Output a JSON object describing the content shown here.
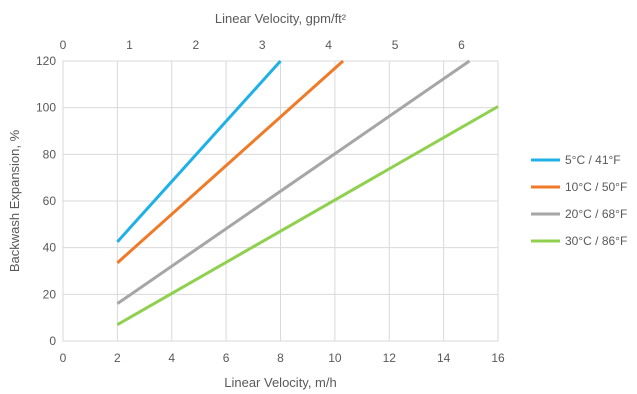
{
  "chart_data": {
    "type": "line",
    "xlabel": "Linear Velocity, m/h",
    "x2label": "Linear Velocity, gpm/ft²",
    "ylabel": "Backwash Expansion, %",
    "xlim": [
      0,
      16
    ],
    "x2lim": [
      0,
      6.55
    ],
    "ylim": [
      0,
      120
    ],
    "x_ticks": [
      0,
      2,
      4,
      6,
      8,
      10,
      12,
      14,
      16
    ],
    "x2_ticks": [
      0,
      1,
      2,
      3,
      4,
      5,
      6
    ],
    "y_ticks": [
      0,
      20,
      40,
      60,
      80,
      100,
      120
    ],
    "grid": true,
    "legend_position": "right",
    "series": [
      {
        "name": "5°C / 41°F",
        "color": "#1fb0e8",
        "x": [
          2,
          8.0
        ],
        "y": [
          42.5,
          120
        ]
      },
      {
        "name": "10°C / 50°F",
        "color": "#ef7a27",
        "x": [
          2,
          10.3
        ],
        "y": [
          33.5,
          120
        ]
      },
      {
        "name": "20°C / 68°F",
        "color": "#a6a6a6",
        "x": [
          2,
          14.95
        ],
        "y": [
          16,
          120
        ]
      },
      {
        "name": "30°C / 86°F",
        "color": "#8fd14f",
        "x": [
          2,
          16
        ],
        "y": [
          7,
          100.5
        ]
      }
    ]
  }
}
